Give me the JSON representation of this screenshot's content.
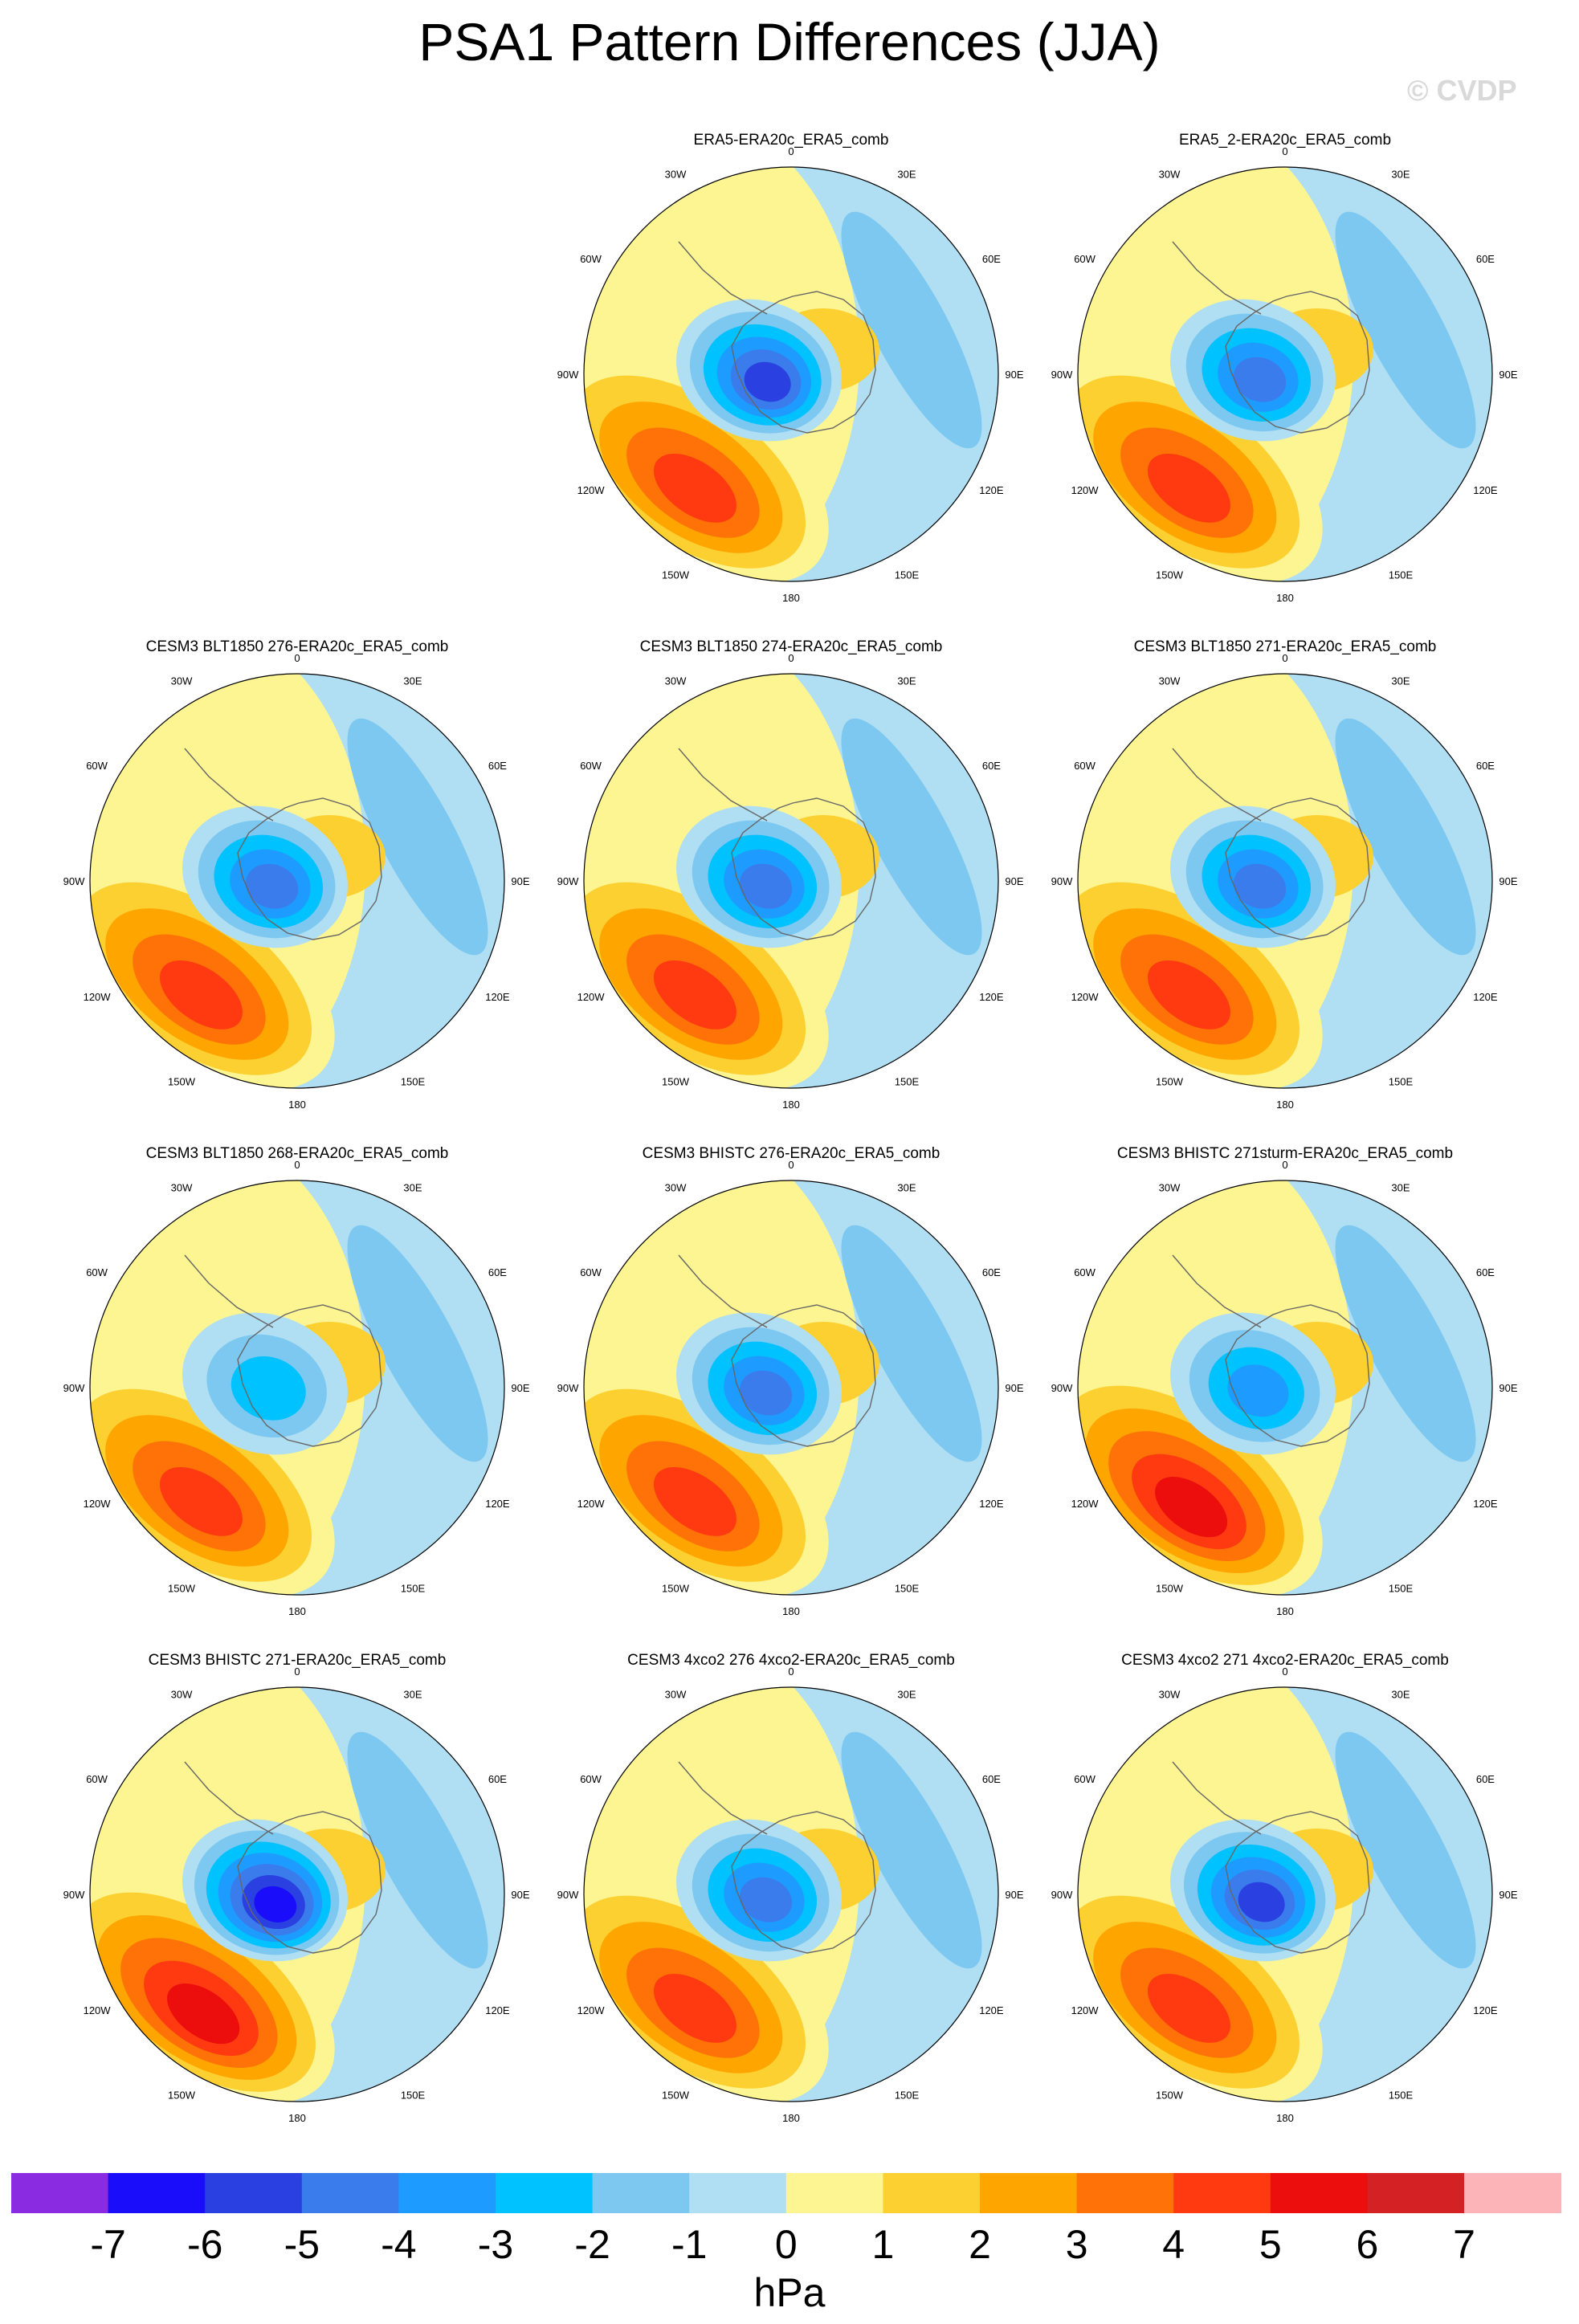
{
  "title": "PSA1 Pattern Differences (JJA)",
  "watermark": "© CVDP",
  "chart_data": {
    "type": "heatmap",
    "projection": "south-polar stereographic",
    "variable_units": "hPa",
    "longitude_labels": [
      "0",
      "30E",
      "60E",
      "90E",
      "120E",
      "150E",
      "180",
      "150W",
      "120W",
      "90W",
      "60W",
      "30W"
    ],
    "panels": [
      {
        "title": "ERA5-ERA20c_ERA5_comb",
        "positive_peak": 5,
        "negative_peak": -6
      },
      {
        "title": "ERA5_2-ERA20c_ERA5_comb",
        "positive_peak": 5,
        "negative_peak": -5
      },
      {
        "title": "CESM3 BLT1850 276-ERA20c_ERA5_comb",
        "positive_peak": 5,
        "negative_peak": -5
      },
      {
        "title": "CESM3 BLT1850 274-ERA20c_ERA5_comb",
        "positive_peak": 5,
        "negative_peak": -5
      },
      {
        "title": "CESM3 BLT1850 271-ERA20c_ERA5_comb",
        "positive_peak": 5,
        "negative_peak": -5
      },
      {
        "title": "CESM3 BLT1850 268-ERA20c_ERA5_comb",
        "positive_peak": 5,
        "negative_peak": -3
      },
      {
        "title": "CESM3 BHISTC 276-ERA20c_ERA5_comb",
        "positive_peak": 5,
        "negative_peak": -5
      },
      {
        "title": "CESM3 BHISTC 271sturm-ERA20c_ERA5_comb",
        "positive_peak": 6,
        "negative_peak": -4
      },
      {
        "title": "CESM3 BHISTC 271-ERA20c_ERA5_comb",
        "positive_peak": 6,
        "negative_peak": -7
      },
      {
        "title": "CESM3 4xco2 276 4xco2-ERA20c_ERA5_comb",
        "positive_peak": 5,
        "negative_peak": -5
      },
      {
        "title": "CESM3 4xco2 271 4xco2-ERA20c_ERA5_comb",
        "positive_peak": 5,
        "negative_peak": -6
      }
    ],
    "colorbar": {
      "label": "hPa",
      "tick_labels": [
        "-7",
        "-6",
        "-5",
        "-4",
        "-3",
        "-2",
        "-1",
        "0",
        "1",
        "2",
        "3",
        "4",
        "5",
        "6",
        "7"
      ],
      "colors": [
        "#8a2be2",
        "#1a0dfa",
        "#2b40e0",
        "#3a7cec",
        "#1e9bff",
        "#00c2ff",
        "#7cc8f0",
        "#b0def2",
        "#fdf592",
        "#fdd032",
        "#fea500",
        "#ff7208",
        "#ff3a10",
        "#ec0d0d",
        "#d42124",
        "#fdb4b8"
      ]
    }
  }
}
